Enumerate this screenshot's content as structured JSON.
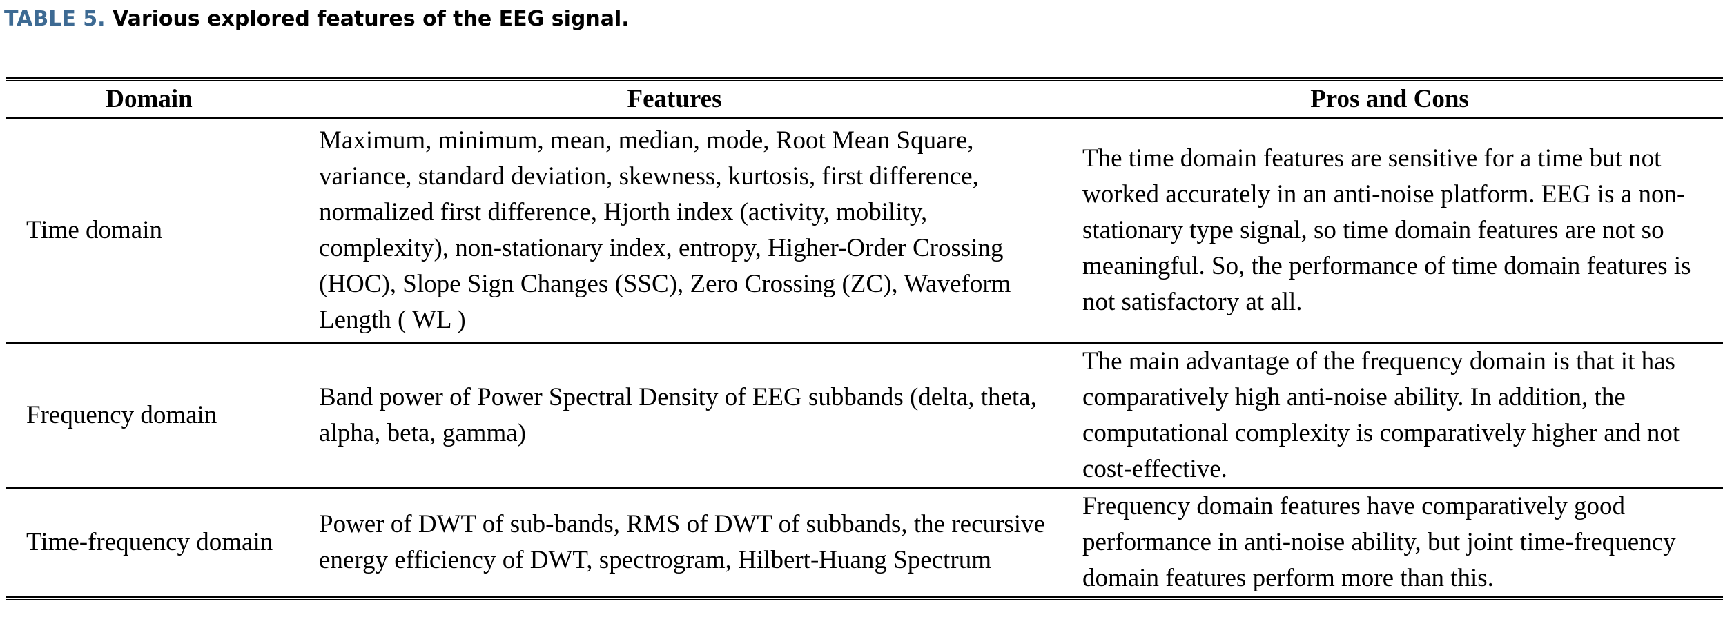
{
  "caption": {
    "label": "TABLE 5.",
    "text": "Various explored features of the EEG signal."
  },
  "table": {
    "headers": [
      "Domain",
      "Features",
      "Pros and Cons"
    ],
    "rows": [
      {
        "domain": "Time domain",
        "features": "Maximum, minimum, mean, median, mode, Root Mean Square, variance, standard deviation, skewness, kurtosis, first difference, normalized first difference, Hjorth index (activity, mobility, complexity), non-stationary index, entropy, Higher-Order Crossing (HOC), Slope Sign Changes (SSC), Zero Crossing (ZC), Waveform Length ( WL )",
        "pros_cons": "The time domain features are sensitive for a time but not worked accurately in an anti-noise platform. EEG is a non-stationary type signal, so time domain features are not so meaningful. So, the performance of time domain features is not satisfactory at all."
      },
      {
        "domain": "Frequency domain",
        "features": "Band power of Power Spectral Density of EEG subbands (delta, theta, alpha, beta, gamma)",
        "pros_cons": "The main advantage of the frequency domain is that it has comparatively high anti-noise ability. In addition, the computational complexity is comparatively higher and not cost-effective."
      },
      {
        "domain": "Time-frequency domain",
        "features": "Power of DWT of sub-bands, RMS of DWT of subbands, the recursive energy efficiency of DWT, spectrogram, Hilbert-Huang Spectrum",
        "pros_cons": "Frequency domain features have comparatively good performance in anti-noise ability, but joint time-frequency domain features perform more than this."
      }
    ]
  }
}
